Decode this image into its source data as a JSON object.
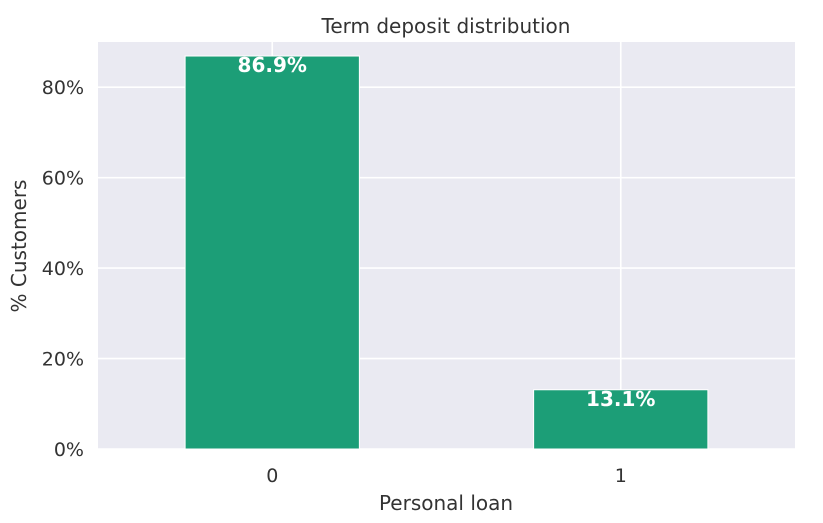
{
  "chart_data": {
    "type": "bar",
    "title": "Term deposit distribution",
    "xlabel": "Personal loan",
    "ylabel": "% Customers",
    "categories": [
      "0",
      "1"
    ],
    "values": [
      86.9,
      13.1
    ],
    "data_labels": [
      "86.9%",
      "13.1%"
    ],
    "ylim": [
      0,
      90
    ],
    "yticks": [
      0,
      20,
      40,
      60,
      80
    ],
    "ytick_labels": [
      "0%",
      "20%",
      "40%",
      "60%",
      "80%"
    ],
    "grid": true,
    "legend": "none"
  },
  "colors": {
    "bar": "#1c9e77",
    "plot_background": "#eaeaf2",
    "grid": "#ffffff",
    "text": "#333333"
  }
}
